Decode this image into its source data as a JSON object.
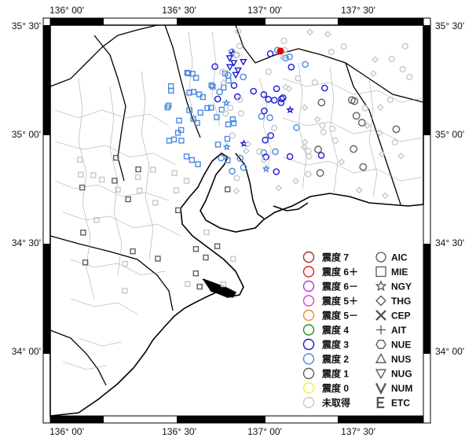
{
  "axes": {
    "top": [
      "136° 00'",
      "136° 30'",
      "137° 00'",
      "137° 30'"
    ],
    "bottom": [
      "136° 00'",
      "136° 30'",
      "137° 00'",
      "137° 30'"
    ],
    "left": [
      "35° 30'",
      "35° 00'",
      "34° 30'",
      "34° 00'"
    ],
    "right": [
      "35° 30'",
      "35° 00'",
      "34° 30'",
      "34° 00'"
    ]
  },
  "legend": {
    "intensity": [
      {
        "label": "震度 7",
        "color": "#a0322d"
      },
      {
        "label": "震度 6＋",
        "color": "#e02020"
      },
      {
        "label": "震度 6－",
        "color": "#b03ad8"
      },
      {
        "label": "震度 5＋",
        "color": "#e040d0"
      },
      {
        "label": "震度 5－",
        "color": "#f08a30"
      },
      {
        "label": "震度 4",
        "color": "#2a8a2a"
      },
      {
        "label": "震度 3",
        "color": "#1a1ad8"
      },
      {
        "label": "震度 2",
        "color": "#4a8ae0"
      },
      {
        "label": "震度 1",
        "color": "#606060"
      },
      {
        "label": "震度 0",
        "color": "#f5f030"
      },
      {
        "label": "未取得",
        "color": "#c8c8c8"
      }
    ],
    "networks": [
      {
        "label": "AIC",
        "icon": "circle-icon"
      },
      {
        "label": "MIE",
        "icon": "square-icon"
      },
      {
        "label": "NGY",
        "icon": "star-icon"
      },
      {
        "label": "THG",
        "icon": "diamond-icon"
      },
      {
        "label": "CEP",
        "icon": "x-icon"
      },
      {
        "label": "AIT",
        "icon": "plus-icon"
      },
      {
        "label": "NUE",
        "icon": "hexagon-icon"
      },
      {
        "label": "NUS",
        "icon": "triangle-up-icon"
      },
      {
        "label": "NUG",
        "icon": "triangle-down-icon"
      },
      {
        "label": "NUM",
        "icon": "v-icon"
      },
      {
        "label": "ETC",
        "icon": "e-icon"
      }
    ]
  },
  "epicenter": {
    "color": "#e00000",
    "icon": "epicenter-dot-icon"
  }
}
